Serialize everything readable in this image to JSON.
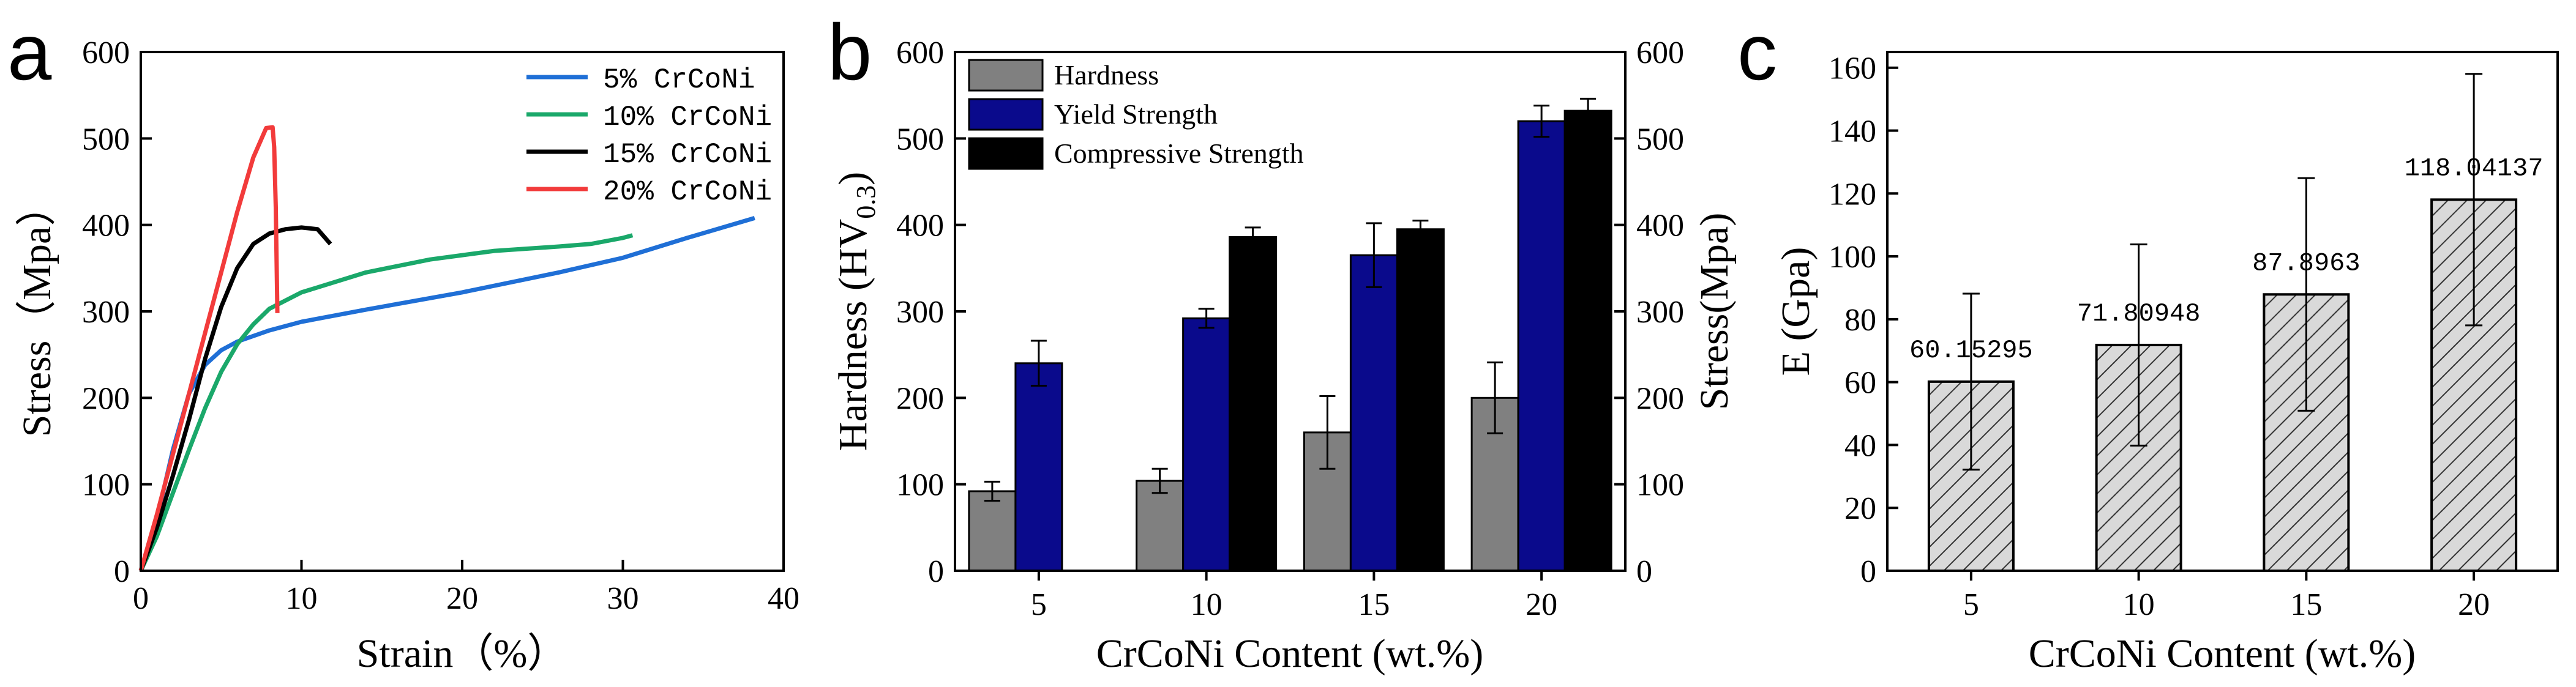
{
  "chart_data": [
    {
      "panel": "a",
      "type": "line",
      "xlabel": "Strain（%）",
      "ylabel": "Stress（Mpa）",
      "xlim": [
        0,
        40
      ],
      "ylim": [
        0,
        600
      ],
      "xticks": [
        "0",
        "10",
        "20",
        "30",
        "40"
      ],
      "yticks": [
        "0",
        "100",
        "200",
        "300",
        "400",
        "500",
        "600"
      ],
      "legend_position": "top-right",
      "series": [
        {
          "name": "5% CrCoNi",
          "color": "#1f6fd6",
          "x": [
            0,
            1,
            2,
            3,
            4,
            5,
            6,
            8,
            10,
            14,
            20,
            26,
            30,
            34,
            38.2
          ],
          "y": [
            0,
            60,
            140,
            205,
            238,
            255,
            265,
            278,
            288,
            302,
            322,
            345,
            362,
            385,
            408
          ]
        },
        {
          "name": "10% CrCoNi",
          "color": "#1aa86a",
          "x": [
            0,
            1,
            2,
            3,
            4,
            5,
            6,
            7,
            8,
            10,
            14,
            18,
            22,
            26,
            28,
            30,
            30.6
          ],
          "y": [
            0,
            40,
            90,
            140,
            188,
            230,
            262,
            285,
            303,
            322,
            345,
            360,
            370,
            375,
            378,
            385,
            388
          ]
        },
        {
          "name": "15% CrCoNi",
          "color": "#000000",
          "x": [
            0,
            1,
            2,
            3,
            4,
            5,
            6,
            7,
            8,
            9,
            10,
            11,
            11.8
          ],
          "y": [
            0,
            50,
            110,
            175,
            245,
            305,
            350,
            378,
            390,
            395,
            397,
            395,
            378
          ]
        },
        {
          "name": "20% CrCoNi",
          "color": "#f23b3b",
          "x": [
            0,
            1,
            2,
            3,
            4,
            5,
            6,
            7,
            7.8,
            8.2,
            8.3,
            8.4,
            8.5
          ],
          "y": [
            0,
            65,
            135,
            205,
            275,
            345,
            415,
            478,
            512,
            513,
            490,
            420,
            298
          ]
        }
      ]
    },
    {
      "panel": "b",
      "type": "bar",
      "xlabel": "CrCoNi Content (wt.%)",
      "ylabel_left": "Hardness (HV",
      "ylabel_left_sub": "0.3",
      "ylabel_left_end": ")",
      "ylabel_right": "Stress(Mpa)",
      "ylim": [
        0,
        600
      ],
      "categories": [
        "5",
        "10",
        "15",
        "20"
      ],
      "yticks": [
        "0",
        "100",
        "200",
        "300",
        "400",
        "500",
        "600"
      ],
      "legend_position": "top-left",
      "series": [
        {
          "name": "Hardness",
          "color": "#808080",
          "values": [
            92,
            104,
            160,
            200
          ],
          "errors": [
            11,
            14,
            42,
            41
          ]
        },
        {
          "name": "Yield Strength",
          "color": "#0a0a8c",
          "values": [
            240,
            292,
            365,
            520
          ],
          "errors": [
            26,
            11,
            37,
            18
          ]
        },
        {
          "name": "Compressive Strength",
          "color": "#000000",
          "values": [
            null,
            386,
            395,
            532
          ],
          "errors": [
            null,
            11,
            10,
            14
          ]
        }
      ]
    },
    {
      "panel": "c",
      "type": "bar",
      "xlabel": "CrCoNi Content (wt.%)",
      "ylabel": "E (Gpa)",
      "ylim": [
        0,
        165
      ],
      "categories": [
        "5",
        "10",
        "15",
        "20"
      ],
      "yticks": [
        "0",
        "20",
        "40",
        "60",
        "80",
        "100",
        "120",
        "140",
        "160"
      ],
      "values": [
        60.15295,
        71.80948,
        87.8963,
        118.04137
      ],
      "value_labels": [
        "60.15295",
        "71.80948",
        "87.8963",
        "118.04137"
      ],
      "errors": [
        28,
        32,
        37,
        40
      ],
      "bar_fill": "hatched gray",
      "bar_color": "#d9d9d9"
    }
  ],
  "panel_labels": [
    "a",
    "b",
    "c"
  ]
}
